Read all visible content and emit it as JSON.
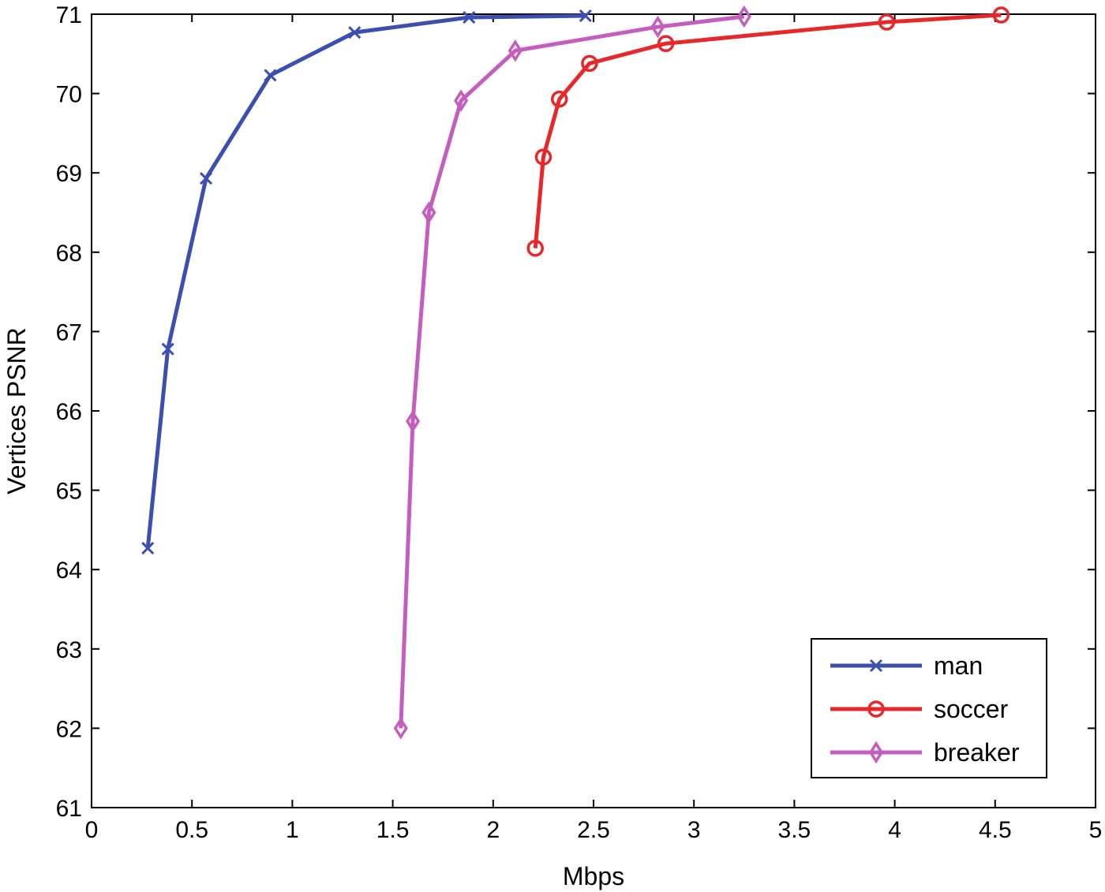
{
  "chart_data": {
    "type": "line",
    "xlabel": "Mbps",
    "ylabel": "Vertices PSNR",
    "xlim": [
      0,
      5
    ],
    "ylim": [
      61,
      71
    ],
    "xticks": [
      0,
      0.5,
      1,
      1.5,
      2,
      2.5,
      3,
      3.5,
      4,
      4.5,
      5
    ],
    "xtick_labels": [
      "0",
      "0.5",
      "1",
      "1.5",
      "2",
      "2.5",
      "3",
      "3.5",
      "4",
      "4.5",
      "5"
    ],
    "yticks": [
      61,
      62,
      63,
      64,
      65,
      66,
      67,
      68,
      69,
      70,
      71
    ],
    "ytick_labels": [
      "61",
      "62",
      "63",
      "64",
      "65",
      "66",
      "67",
      "68",
      "69",
      "70",
      "71"
    ],
    "grid": false,
    "legend_position": "bottom-right",
    "series": [
      {
        "name": "man",
        "color": "#3a4fb0",
        "marker": "x",
        "x": [
          0.28,
          0.38,
          0.57,
          0.89,
          1.31,
          1.88,
          2.46
        ],
        "y": [
          64.27,
          66.78,
          68.93,
          70.23,
          70.77,
          70.96,
          70.98
        ]
      },
      {
        "name": "soccer",
        "color": "#e8272a",
        "marker": "o",
        "x": [
          2.21,
          2.25,
          2.33,
          2.48,
          2.86,
          3.96,
          4.53
        ],
        "y": [
          68.05,
          69.2,
          69.93,
          70.38,
          70.63,
          70.9,
          70.99
        ]
      },
      {
        "name": "breaker",
        "color": "#c45dbe",
        "marker": "diamond",
        "x": [
          1.54,
          1.6,
          1.68,
          1.84,
          2.11,
          2.82,
          3.25
        ],
        "y": [
          62.0,
          65.87,
          68.5,
          69.91,
          70.54,
          70.84,
          70.97
        ]
      }
    ]
  }
}
